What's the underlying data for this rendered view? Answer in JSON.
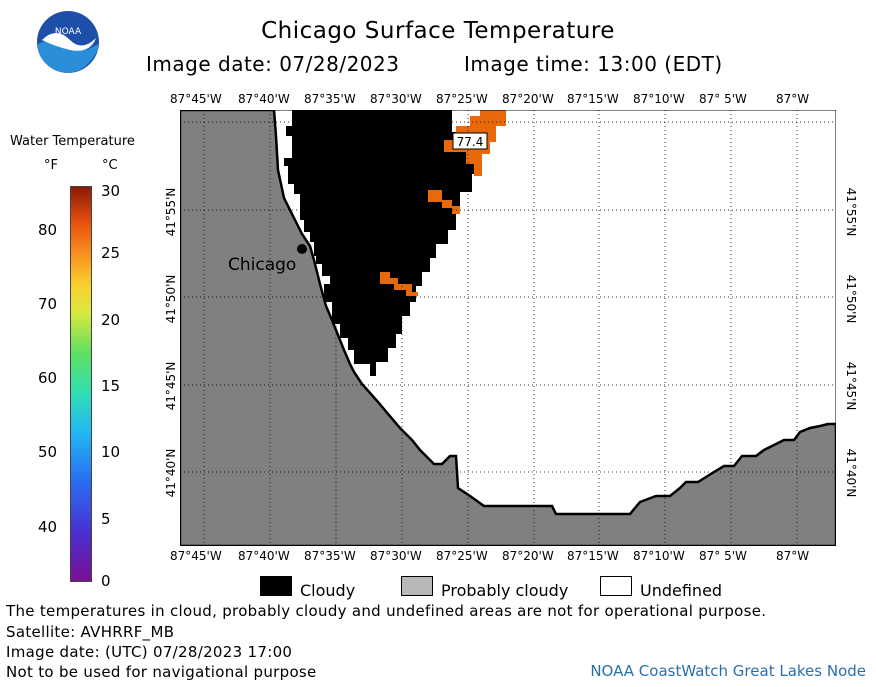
{
  "header": {
    "title": "Chicago Surface Temperature",
    "image_date": "Image date: 07/28/2023",
    "image_time": "Image time: 13:00 (EDT)"
  },
  "logo": {
    "text": "NOAA",
    "icon": "noaa-logo-icon"
  },
  "legend": {
    "heading": "Water Temperature",
    "unit_f": "°F",
    "unit_c": "°C",
    "ticks_f": [
      "80",
      "70",
      "60",
      "50",
      "40"
    ],
    "ticks_c": [
      "30",
      "25",
      "20",
      "15",
      "10",
      "5",
      "0"
    ]
  },
  "map": {
    "lon_labels": [
      "87°45'W",
      "87°40'W",
      "87°35'W",
      "87°30'W",
      "87°25'W",
      "87°20'W",
      "87°15'W",
      "87°10'W",
      "87° 5'W",
      "87°W"
    ],
    "lat_labels": [
      "41°55'N",
      "41°50'N",
      "41°45'N",
      "41°40'N"
    ],
    "city_label": "Chicago",
    "temp_label": "77.4",
    "colors": {
      "land": "#808080",
      "cloud": "#000000",
      "water": "#e8680a",
      "undefined": "#ffffff"
    }
  },
  "key": {
    "cloudy": "Cloudy",
    "probably_cloudy": "Probably cloudy",
    "undefined": "Undefined"
  },
  "footer": {
    "note": "The temperatures in cloud, probably cloudy and undefined areas are not for operational purpose.",
    "satellite": "Satellite: AVHRRF_MB",
    "utc_date": "Image date: (UTC) 07/28/2023  17:00",
    "nav_warning": "Not to be used for navigational purpose",
    "credit": "NOAA CoastWatch Great Lakes Node"
  }
}
